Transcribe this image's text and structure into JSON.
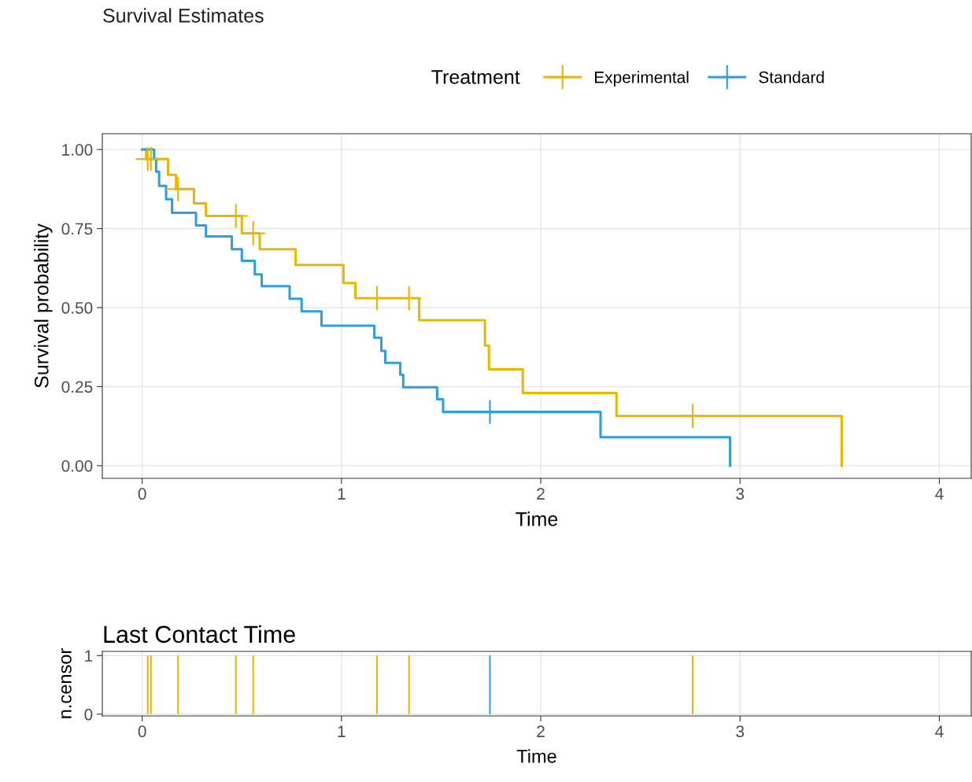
{
  "chart_data": [
    {
      "type": "step",
      "title": "Survival Estimates",
      "legend_title": "Treatment",
      "xlabel": "Time",
      "ylabel": "Survival probability",
      "xlim": [
        -0.2,
        4.16
      ],
      "ylim": [
        -0.04,
        1.05
      ],
      "xticks": [
        0,
        1,
        2,
        3,
        4
      ],
      "yticks": [
        {
          "value": 0,
          "label": "0.00"
        },
        {
          "value": 0.25,
          "label": "0.25"
        },
        {
          "value": 0.5,
          "label": "0.50"
        },
        {
          "value": 0.75,
          "label": "0.75"
        },
        {
          "value": 1,
          "label": "1.00"
        }
      ],
      "grid": true,
      "legend": "top",
      "series": [
        {
          "name": "Experimental",
          "color": "#e7b800",
          "x": [
            0,
            0.02,
            0.13,
            0.17,
            0.26,
            0.32,
            0.5,
            0.59,
            0.77,
            1.01,
            1.07,
            1.39,
            1.72,
            1.74,
            1.91,
            2.38,
            3.51
          ],
          "values": [
            1.0,
            0.97,
            0.92,
            0.875,
            0.83,
            0.79,
            0.735,
            0.685,
            0.635,
            0.578,
            0.53,
            0.46,
            0.38,
            0.305,
            0.23,
            0.157,
            0
          ]
        },
        {
          "name": "Standard",
          "color": "#2e9fdf",
          "x": [
            0,
            0.06,
            0.07,
            0.085,
            0.12,
            0.15,
            0.27,
            0.32,
            0.45,
            0.5,
            0.565,
            0.6,
            0.74,
            0.8,
            0.9,
            1.165,
            1.2,
            1.22,
            1.295,
            1.31,
            1.48,
            1.51,
            2.3,
            2.95
          ],
          "values": [
            1.0,
            0.97,
            0.93,
            0.885,
            0.843,
            0.8,
            0.76,
            0.725,
            0.685,
            0.648,
            0.605,
            0.568,
            0.528,
            0.488,
            0.443,
            0.405,
            0.363,
            0.325,
            0.288,
            0.248,
            0.21,
            0.17,
            0.09,
            0
          ]
        },
        {
          "type": "scatter",
          "marker": "cross",
          "color": "#e7b800",
          "x": [
            0.028,
            0.044,
            0.18,
            0.47,
            0.557,
            1.178,
            1.339,
            2.762
          ],
          "values": [
            0.97,
            0.97,
            0.875,
            0.79,
            0.735,
            0.53,
            0.53,
            0.157
          ]
        },
        {
          "type": "scatter",
          "marker": "cross",
          "color": "#2e9fdf",
          "x": [
            1.745
          ],
          "values": [
            0.17
          ]
        }
      ]
    },
    {
      "type": "bar",
      "title": "Last Contact Time",
      "xlabel": "Time",
      "ylabel": "n.censor",
      "xlim": [
        -0.2,
        4.16
      ],
      "ylim": [
        -0.03,
        1.07
      ],
      "xticks": [
        0,
        1,
        2,
        3,
        4
      ],
      "yticks": [
        0,
        1
      ],
      "grid": true,
      "series": [
        {
          "color": "#e7b800",
          "x": [
            0.028,
            0.044,
            0.18,
            0.47,
            0.557,
            1.178,
            1.339,
            2.762
          ],
          "values": [
            1,
            1,
            1,
            1,
            1,
            1,
            1,
            1
          ]
        },
        {
          "color": "#2e9fdf",
          "x": [
            1.745
          ],
          "values": [
            1
          ]
        }
      ]
    }
  ]
}
